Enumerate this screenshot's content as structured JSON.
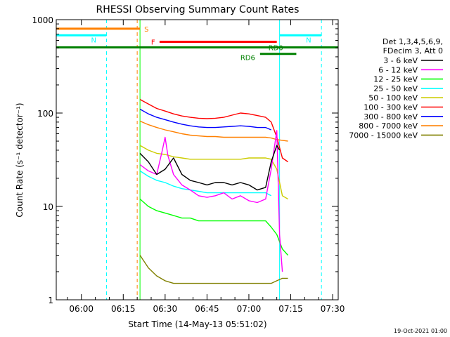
{
  "chart_data": {
    "type": "line",
    "title": "RHESSI Observing Summary Count Rates",
    "xlabel": "Start Time (14-May-13 05:51:02)",
    "ylabel": "Count Rate (s⁻¹ detector⁻¹)",
    "yscale": "log",
    "ylim": [
      1,
      1000
    ],
    "xlim_minutes": [
      0,
      101
    ],
    "x_tick_labels": [
      "06:00",
      "06:15",
      "06:30",
      "06:45",
      "07:00",
      "07:15",
      "07:30"
    ],
    "y_tick_labels": [
      "1",
      "10",
      "100",
      "1000"
    ],
    "legend": {
      "title_line1": "Det 1,3,4,5,6,9,",
      "title_line2": "FDecim 3, Att 0",
      "placement": "right"
    },
    "series": [
      {
        "name": "3 - 6 keV",
        "color": "#000000",
        "t": [
          "06:21",
          "06:24",
          "06:27",
          "06:30",
          "06:33",
          "06:36",
          "06:39",
          "06:42",
          "06:45",
          "06:48",
          "06:51",
          "06:54",
          "06:57",
          "07:00",
          "07:03",
          "07:06",
          "07:08",
          "07:10",
          "07:11"
        ],
        "values": [
          37,
          30,
          22,
          25,
          33,
          22,
          19,
          18,
          17,
          18,
          18,
          17,
          18,
          17,
          15,
          16,
          30,
          45,
          40
        ]
      },
      {
        "name": "6 - 12 keV",
        "color": "#ff00ff",
        "t": [
          "06:21",
          "06:24",
          "06:27",
          "06:29",
          "06:30",
          "06:31",
          "06:33",
          "06:36",
          "06:39",
          "06:42",
          "06:45",
          "06:48",
          "06:51",
          "06:54",
          "06:57",
          "07:00",
          "07:03",
          "07:06",
          "07:08",
          "07:10",
          "07:11",
          "07:12"
        ],
        "values": [
          28,
          24,
          22,
          40,
          55,
          35,
          22,
          17,
          15,
          13,
          12.5,
          13,
          14,
          12,
          13,
          11.5,
          11,
          12,
          25,
          65,
          5,
          2
        ]
      },
      {
        "name": "12 - 25 keV",
        "color": "#00ff00",
        "t": [
          "06:21",
          "06:24",
          "06:27",
          "06:30",
          "06:33",
          "06:36",
          "06:39",
          "06:42",
          "06:45",
          "06:48",
          "06:51",
          "06:54",
          "06:57",
          "07:00",
          "07:03",
          "07:06",
          "07:08",
          "07:10",
          "07:12",
          "07:14"
        ],
        "values": [
          12,
          10,
          9,
          8.5,
          8,
          7.5,
          7.5,
          7,
          7,
          7,
          7,
          7,
          7,
          7,
          7,
          7,
          6,
          5,
          3.5,
          3
        ]
      },
      {
        "name": "25 - 50 keV",
        "color": "#00ffff",
        "t": [
          "06:21",
          "06:24",
          "06:27",
          "06:30",
          "06:33",
          "06:36",
          "06:39",
          "06:42",
          "06:45",
          "06:48",
          "06:51",
          "06:54",
          "06:57",
          "07:00",
          "07:03",
          "07:06",
          "07:08"
        ],
        "values": [
          24,
          21,
          19,
          18,
          16.5,
          15.5,
          15,
          14.5,
          14,
          14,
          14,
          14,
          14,
          14,
          14,
          14,
          13
        ]
      },
      {
        "name": "50 - 100 keV",
        "color": "#cccc00",
        "t": [
          "06:21",
          "06:24",
          "06:27",
          "06:30",
          "06:33",
          "06:36",
          "06:39",
          "06:42",
          "06:45",
          "06:48",
          "06:51",
          "06:54",
          "06:57",
          "07:00",
          "07:03",
          "07:06",
          "07:08",
          "07:10",
          "07:12",
          "07:14"
        ],
        "values": [
          45,
          40,
          37,
          36,
          34,
          33,
          32,
          32,
          32,
          32,
          32,
          32,
          32,
          33,
          33,
          33,
          32,
          25,
          13,
          12
        ]
      },
      {
        "name": "100 - 300 keV",
        "color": "#ff0000",
        "t": [
          "06:21",
          "06:24",
          "06:27",
          "06:30",
          "06:33",
          "06:36",
          "06:39",
          "06:42",
          "06:45",
          "06:48",
          "06:51",
          "06:54",
          "06:57",
          "07:00",
          "07:03",
          "07:06",
          "07:08",
          "07:10",
          "07:12",
          "07:14"
        ],
        "values": [
          140,
          125,
          112,
          105,
          98,
          93,
          90,
          88,
          87,
          88,
          90,
          95,
          100,
          98,
          94,
          90,
          80,
          55,
          33,
          30
        ]
      },
      {
        "name": "300 - 800 keV",
        "color": "#0000ff",
        "t": [
          "06:21",
          "06:24",
          "06:27",
          "06:30",
          "06:33",
          "06:36",
          "06:39",
          "06:42",
          "06:45",
          "06:48",
          "06:51",
          "06:54",
          "06:57",
          "07:00",
          "07:03",
          "07:06",
          "07:08"
        ],
        "values": [
          110,
          98,
          90,
          85,
          80,
          76,
          73,
          71,
          70,
          70,
          71,
          72,
          73,
          72,
          70,
          70,
          66
        ]
      },
      {
        "name": "800 - 7000 keV",
        "color": "#ff8000",
        "t": [
          "06:21",
          "06:24",
          "06:27",
          "06:30",
          "06:33",
          "06:36",
          "06:39",
          "06:42",
          "06:45",
          "06:48",
          "06:51",
          "06:54",
          "06:57",
          "07:00",
          "07:03",
          "07:06",
          "07:08",
          "07:10",
          "07:14"
        ],
        "values": [
          82,
          75,
          70,
          66,
          63,
          60,
          58,
          57,
          56,
          56,
          55,
          55,
          55,
          55,
          55,
          55,
          54,
          52,
          50
        ]
      },
      {
        "name": "7000 - 15000 keV",
        "color": "#808000",
        "t": [
          "06:21",
          "06:24",
          "06:27",
          "06:30",
          "06:33",
          "06:36",
          "06:39",
          "06:42",
          "06:45",
          "06:48",
          "06:51",
          "06:54",
          "06:57",
          "07:00",
          "07:03",
          "07:06",
          "07:08",
          "07:10",
          "07:12",
          "07:14"
        ],
        "values": [
          3,
          2.2,
          1.8,
          1.6,
          1.5,
          1.5,
          1.5,
          1.5,
          1.5,
          1.5,
          1.5,
          1.5,
          1.5,
          1.5,
          1.5,
          1.5,
          1.5,
          1.6,
          1.7,
          1.7
        ]
      }
    ],
    "annotation_bars": [
      {
        "label": "S",
        "color": "#ff8000",
        "y": 800,
        "t_start": "05:51",
        "t_end": "06:21"
      },
      {
        "label": "N",
        "color": "#00ffff",
        "y": 680,
        "t_start": "05:51",
        "t_end": "06:09"
      },
      {
        "label": "N",
        "color": "#00ffff",
        "y": 680,
        "t_start": "07:11",
        "t_end": "07:26"
      },
      {
        "label": "F",
        "color": "#ff0000",
        "y": 580,
        "t_start": "06:28",
        "t_end": "07:10"
      },
      {
        "label": "RD0",
        "color": "#008000",
        "y": 505,
        "t_start": "05:51",
        "t_end": "07:32"
      },
      {
        "label": "RD6",
        "color": "#008000",
        "y": 430,
        "t_start": "07:04",
        "t_end": "07:17"
      }
    ],
    "vertical_markers": [
      {
        "color": "#00ffff",
        "style": "solid",
        "t": "05:51"
      },
      {
        "color": "#00ffff",
        "style": "dashed",
        "t": "06:09"
      },
      {
        "color": "#ff8000",
        "style": "dashed",
        "t": "06:20"
      },
      {
        "color": "#00ff00",
        "style": "solid",
        "t": "06:21"
      },
      {
        "color": "#00ffff",
        "style": "solid",
        "t": "07:11"
      },
      {
        "color": "#00ffff",
        "style": "dashed",
        "t": "07:26"
      }
    ],
    "timestamp": "19-Oct-2021 01:00"
  }
}
